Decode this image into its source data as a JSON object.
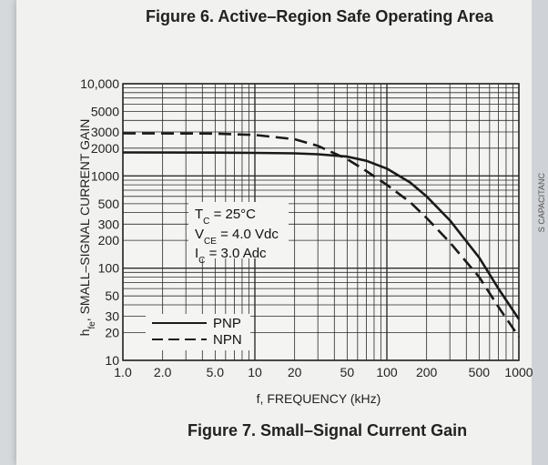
{
  "figure_top_caption": "Figure 6. Active–Region Safe Operating Area",
  "figure_bottom_caption": "Figure 7. Small–Signal Current Gain",
  "side_text": "S CAPACITANC",
  "chart_data": {
    "type": "line",
    "title": "Figure 7. Small–Signal Current Gain",
    "xlabel": "f, FREQUENCY (kHz)",
    "ylabel": "h_fe, SMALL–SIGNAL CURRENT GAIN",
    "x_scale": "log",
    "y_scale": "log",
    "xlim": [
      1,
      1000
    ],
    "ylim": [
      10,
      10000
    ],
    "grid": true,
    "x_ticks": [
      {
        "value": 1,
        "label": "1.0"
      },
      {
        "value": 2,
        "label": "2.0"
      },
      {
        "value": 5,
        "label": "5.0"
      },
      {
        "value": 10,
        "label": "10"
      },
      {
        "value": 20,
        "label": "20"
      },
      {
        "value": 50,
        "label": "50"
      },
      {
        "value": 100,
        "label": "100"
      },
      {
        "value": 200,
        "label": "200"
      },
      {
        "value": 500,
        "label": "500"
      },
      {
        "value": 1000,
        "label": "1000"
      }
    ],
    "y_ticks": [
      {
        "value": 10,
        "label": "10"
      },
      {
        "value": 20,
        "label": "20"
      },
      {
        "value": 30,
        "label": "30"
      },
      {
        "value": 50,
        "label": "50"
      },
      {
        "value": 100,
        "label": "100"
      },
      {
        "value": 200,
        "label": "200"
      },
      {
        "value": 300,
        "label": "300"
      },
      {
        "value": 500,
        "label": "500"
      },
      {
        "value": 1000,
        "label": "1000"
      },
      {
        "value": 2000,
        "label": "2000"
      },
      {
        "value": 3000,
        "label": "3000"
      },
      {
        "value": 5000,
        "label": "5000"
      },
      {
        "value": 10000,
        "label": "10,000"
      }
    ],
    "annotations": [
      "TC = 25°C",
      "VCE = 4.0 Vdc",
      "IC = 3.0 Adc"
    ],
    "legend": [
      {
        "name": "PNP",
        "style": "solid"
      },
      {
        "name": "NPN",
        "style": "dashed"
      }
    ],
    "series": [
      {
        "name": "PNP",
        "style": "solid",
        "x": [
          1,
          5,
          10,
          20,
          30,
          50,
          70,
          100,
          150,
          200,
          300,
          500,
          700,
          1000
        ],
        "y": [
          1800,
          1790,
          1780,
          1760,
          1720,
          1620,
          1460,
          1200,
          850,
          600,
          330,
          130,
          60,
          28
        ]
      },
      {
        "name": "NPN",
        "style": "dashed",
        "x": [
          1,
          5,
          10,
          20,
          30,
          50,
          70,
          100,
          150,
          200,
          300,
          500,
          700,
          1000
        ],
        "y": [
          2900,
          2880,
          2780,
          2500,
          2120,
          1520,
          1130,
          800,
          520,
          350,
          190,
          80,
          38,
          18
        ]
      }
    ]
  },
  "colors": {
    "line": "#1a1a1a",
    "grid": "#2a2a2a",
    "paper": "#f1f1ef"
  }
}
